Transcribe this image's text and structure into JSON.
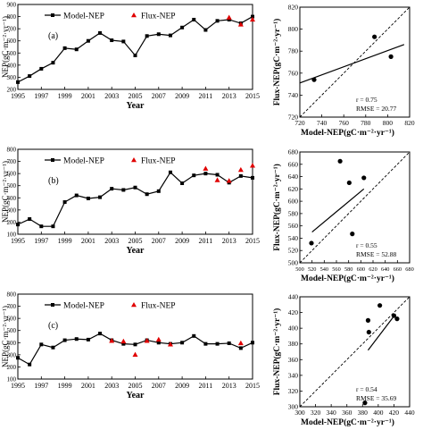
{
  "chart_data": [
    {
      "type": "line",
      "panel_label": "(a)",
      "xlabel": "Year",
      "ylabel": "NEP(gC·m⁻²·yr⁻¹)",
      "xlim": [
        1995,
        2015
      ],
      "ylim": [
        200,
        900
      ],
      "xticks": [
        1995,
        1997,
        1999,
        2001,
        2003,
        2005,
        2007,
        2009,
        2011,
        2013,
        2015
      ],
      "yticks": [
        200,
        300,
        400,
        500,
        600,
        700,
        800,
        900
      ],
      "legend": {
        "placement": "top",
        "entries": [
          "Model-NEP",
          "Flux-NEP"
        ]
      },
      "series": [
        {
          "name": "Model-NEP",
          "marker": "square",
          "color": "#000000",
          "x": [
            1995,
            1996,
            1997,
            1998,
            1999,
            2000,
            2001,
            2002,
            2003,
            2004,
            2005,
            2006,
            2007,
            2008,
            2009,
            2010,
            2011,
            2012,
            2013,
            2014,
            2015
          ],
          "y": [
            260,
            310,
            370,
            420,
            540,
            530,
            600,
            665,
            605,
            595,
            480,
            640,
            655,
            645,
            710,
            775,
            690,
            765,
            775,
            745,
            800
          ]
        },
        {
          "name": "Flux-NEP",
          "marker": "triangle",
          "color": "#e00000",
          "x": [
            2013,
            2014,
            2015
          ],
          "y": [
            792,
            735,
            775
          ]
        }
      ]
    },
    {
      "type": "scatter",
      "xlabel": "Model-NEP(gC·m⁻²·yr⁻¹)",
      "ylabel": "Flux-NEP(gC·m⁻²·yr⁻¹)",
      "xlim": [
        720,
        820
      ],
      "ylim": [
        720,
        820
      ],
      "xticks": [
        720,
        740,
        760,
        780,
        800,
        820
      ],
      "yticks": [
        720,
        740,
        760,
        780,
        800,
        820
      ],
      "points": [
        [
          733,
          754
        ],
        [
          788,
          793
        ],
        [
          803,
          775
        ]
      ],
      "fit_line": [
        [
          720,
          751
        ],
        [
          815,
          786
        ]
      ],
      "one_to_one_line": true,
      "stats": {
        "r": "r = 0.75",
        "rmse": "RMSE = 20.77"
      }
    },
    {
      "type": "line",
      "panel_label": "(b)",
      "xlabel": "Year",
      "ylabel": "NEP(gC·m⁻²·yr⁻¹)",
      "xlim": [
        1995,
        2015
      ],
      "ylim": [
        100,
        800
      ],
      "xticks": [
        1995,
        1997,
        1999,
        2001,
        2003,
        2005,
        2007,
        2009,
        2011,
        2013,
        2015
      ],
      "yticks": [
        100,
        200,
        300,
        400,
        500,
        600,
        700,
        800
      ],
      "legend": {
        "placement": "top",
        "entries": [
          "Model-NEP",
          "Flux-NEP"
        ]
      },
      "series": [
        {
          "name": "Model-NEP",
          "marker": "square",
          "color": "#000000",
          "x": [
            1995,
            1996,
            1997,
            1998,
            1999,
            2000,
            2001,
            2002,
            2003,
            2004,
            2005,
            2006,
            2007,
            2008,
            2009,
            2010,
            2011,
            2012,
            2013,
            2014,
            2015
          ],
          "y": [
            180,
            225,
            165,
            165,
            365,
            420,
            395,
            405,
            475,
            465,
            485,
            430,
            455,
            610,
            520,
            585,
            600,
            590,
            525,
            580,
            565
          ]
        },
        {
          "name": "Flux-NEP",
          "marker": "triangle",
          "color": "#e00000",
          "x": [
            2011,
            2012,
            2013,
            2014,
            2015
          ],
          "y": [
            640,
            545,
            540,
            630,
            665
          ]
        }
      ]
    },
    {
      "type": "scatter",
      "xlabel": "Model-NEP(gC·m⁻²·yr⁻¹)",
      "ylabel": "Flux-NEP(gC·m⁻²·yr⁻¹)",
      "xlim": [
        500,
        680
      ],
      "ylim": [
        500,
        680
      ],
      "xticks": [
        500,
        520,
        540,
        560,
        580,
        600,
        620,
        640,
        660,
        680
      ],
      "yticks": [
        500,
        520,
        540,
        560,
        580,
        600,
        620,
        640,
        660,
        680
      ],
      "points": [
        [
          519,
          532
        ],
        [
          566,
          665
        ],
        [
          581,
          630
        ],
        [
          586,
          547
        ],
        [
          605,
          638
        ]
      ],
      "fit_line": [
        [
          520,
          550
        ],
        [
          605,
          620
        ]
      ],
      "one_to_one_line": true,
      "stats": {
        "r": "r = 0.55",
        "rmse": "RMSE = 52.88"
      }
    },
    {
      "type": "line",
      "panel_label": "(c)",
      "xlabel": "Year",
      "ylabel": "NEP(gC·m⁻²·yr⁻¹)",
      "xlim": [
        1995,
        2015
      ],
      "ylim": [
        100,
        800
      ],
      "xticks": [
        1995,
        1997,
        1999,
        2001,
        2003,
        2005,
        2007,
        2009,
        2011,
        2013,
        2015
      ],
      "yticks": [
        100,
        200,
        300,
        400,
        500,
        600,
        700,
        800
      ],
      "legend": {
        "placement": "top",
        "entries": [
          "Model-NEP",
          "Flux-NEP"
        ]
      },
      "series": [
        {
          "name": "Model-NEP",
          "marker": "square",
          "color": "#000000",
          "x": [
            1995,
            1996,
            1997,
            1998,
            1999,
            2000,
            2001,
            2002,
            2003,
            2004,
            2005,
            2006,
            2007,
            2008,
            2009,
            2010,
            2011,
            2012,
            2013,
            2014,
            2015
          ],
          "y": [
            275,
            220,
            385,
            360,
            420,
            430,
            425,
            475,
            420,
            390,
            385,
            420,
            400,
            390,
            400,
            455,
            390,
            390,
            395,
            355,
            400
          ]
        },
        {
          "name": "Flux-NEP",
          "marker": "triangle",
          "color": "#e00000",
          "x": [
            2003,
            2004,
            2005,
            2006,
            2007,
            2008,
            2014
          ],
          "y": [
            415,
            410,
            300,
            415,
            425,
            385,
            395
          ]
        }
      ]
    },
    {
      "type": "scatter",
      "xlabel": "Model-NEP(gC·m⁻²·yr⁻¹)",
      "ylabel": "Flux-NEP(gC·m⁻²·yr⁻¹)",
      "xlim": [
        300,
        440
      ],
      "ylim": [
        300,
        440
      ],
      "xticks": [
        300,
        320,
        340,
        360,
        380,
        400,
        420,
        440
      ],
      "yticks": [
        300,
        320,
        340,
        360,
        380,
        400,
        420,
        440
      ],
      "points": [
        [
          383,
          305
        ],
        [
          387,
          410
        ],
        [
          388,
          395
        ],
        [
          402,
          429
        ],
        [
          420,
          416
        ],
        [
          424,
          412
        ]
      ],
      "fit_line": [
        [
          387,
          372
        ],
        [
          422,
          418
        ]
      ],
      "one_to_one_line": true,
      "stats": {
        "r": "r = 0.54",
        "rmse": "RMSE = 35.69"
      }
    }
  ]
}
